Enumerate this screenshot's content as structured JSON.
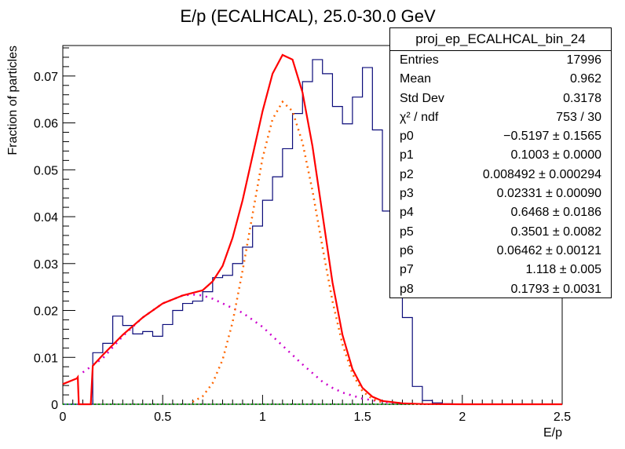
{
  "chart_data": {
    "type": "histogram",
    "title": "E/p (ECALHCAL), 25.0-30.0 GeV",
    "xlabel": "E/p",
    "ylabel": "Fraction of particles",
    "xlim": [
      0,
      2.5
    ],
    "ylim": [
      0,
      0.0765
    ],
    "x_ticks": [
      "0",
      "0.5",
      "1",
      "1.5",
      "2",
      "2.5"
    ],
    "y_ticks": [
      "0",
      "0.01",
      "0.02",
      "0.03",
      "0.04",
      "0.05",
      "0.06",
      "0.07"
    ],
    "bin_width": 0.05,
    "histogram": {
      "bin_edges_start": 0,
      "values": [
        0,
        0,
        0,
        0.011,
        0.013,
        0.0188,
        0.0168,
        0.015,
        0.0155,
        0.0145,
        0.017,
        0.02,
        0.0215,
        0.022,
        0.024,
        0.027,
        0.0275,
        0.03,
        0.0335,
        0.038,
        0.0435,
        0.0485,
        0.0545,
        0.062,
        0.0688,
        0.0735,
        0.0705,
        0.0635,
        0.0598,
        0.0655,
        0.0718,
        0.0585,
        0.0412,
        0.0288,
        0.0185,
        0.0038,
        0.0008,
        0.0003,
        0.0001,
        0,
        0,
        0,
        0,
        0,
        0,
        0,
        0,
        0,
        0,
        0
      ]
    },
    "fit_total": {
      "x": [
        0.0,
        0.07,
        0.075,
        0.08,
        0.09,
        0.1,
        0.11,
        0.12,
        0.13,
        0.14,
        0.15,
        0.2,
        0.3,
        0.4,
        0.5,
        0.6,
        0.7,
        0.75,
        0.8,
        0.85,
        0.9,
        0.95,
        1.0,
        1.05,
        1.1,
        1.15,
        1.2,
        1.25,
        1.3,
        1.35,
        1.4,
        1.45,
        1.5,
        1.55,
        1.6,
        1.7,
        1.8,
        2.0,
        2.5
      ],
      "y": [
        0.0043,
        0.0055,
        0.0058,
        0.0,
        0.0,
        0.0,
        0.0,
        0.0,
        0.0,
        0.0,
        0.0082,
        0.0105,
        0.0148,
        0.0185,
        0.0215,
        0.0232,
        0.0243,
        0.0262,
        0.0295,
        0.0355,
        0.0435,
        0.053,
        0.0625,
        0.0705,
        0.0745,
        0.0735,
        0.0665,
        0.055,
        0.0405,
        0.026,
        0.0148,
        0.0075,
        0.0035,
        0.0016,
        0.0007,
        0.0002,
        5e-05,
        0,
        0
      ]
    },
    "fit_gauss": {
      "x": [
        0.65,
        0.7,
        0.75,
        0.8,
        0.85,
        0.9,
        0.95,
        1.0,
        1.05,
        1.1,
        1.15,
        1.2,
        1.25,
        1.3,
        1.35,
        1.4,
        1.45,
        1.5,
        1.55,
        1.6
      ],
      "y": [
        0.0005,
        0.0017,
        0.0045,
        0.0095,
        0.0175,
        0.0285,
        0.0405,
        0.0525,
        0.0608,
        0.0645,
        0.0625,
        0.0558,
        0.0455,
        0.0335,
        0.022,
        0.0128,
        0.0065,
        0.0028,
        0.0011,
        0.0004
      ]
    },
    "fit_tail": {
      "x": [
        0.1,
        0.2,
        0.3,
        0.4,
        0.5,
        0.6,
        0.65,
        0.7,
        0.75,
        0.85,
        0.9,
        1.0,
        1.1,
        1.2,
        1.3,
        1.35,
        1.4,
        1.5,
        1.6,
        1.7
      ],
      "y": [
        0.0068,
        0.0098,
        0.0145,
        0.0185,
        0.0215,
        0.0232,
        0.0234,
        0.0232,
        0.0225,
        0.0205,
        0.0195,
        0.0165,
        0.0125,
        0.0085,
        0.0048,
        0.0035,
        0.0025,
        0.0012,
        0.0005,
        0.0002
      ]
    },
    "fit_baseline": {
      "x": [
        0,
        2.5
      ],
      "y": [
        0,
        0
      ]
    },
    "colors": {
      "histogram": "#0b0b7a",
      "fit_total": "#ff0000",
      "fit_gauss": "#ff6600",
      "fit_tail": "#cc00cc",
      "fit_baseline": "#009900"
    }
  },
  "stats": {
    "title": "proj_ep_ECALHCAL_bin_24",
    "rows": [
      {
        "label": "Entries",
        "value": "17996"
      },
      {
        "label": "Mean",
        "value": "0.962"
      },
      {
        "label": "Std Dev",
        "value": "0.3178"
      },
      {
        "label": "χ² / ndf",
        "value": "753 / 30"
      },
      {
        "label": "p0",
        "value": "−0.5197 ± 0.1565"
      },
      {
        "label": "p1",
        "value": "0.1003 ± 0.0000"
      },
      {
        "label": "p2",
        "value": "0.008492 ± 0.000294"
      },
      {
        "label": "p3",
        "value": "0.02331 ± 0.00090"
      },
      {
        "label": "p4",
        "value": "0.6468 ± 0.0186"
      },
      {
        "label": "p5",
        "value": "0.3501 ± 0.0082"
      },
      {
        "label": "p6",
        "value": "0.06462 ± 0.00121"
      },
      {
        "label": "p7",
        "value": "1.118 ± 0.005"
      },
      {
        "label": "p8",
        "value": "0.1793 ± 0.0031"
      }
    ]
  }
}
